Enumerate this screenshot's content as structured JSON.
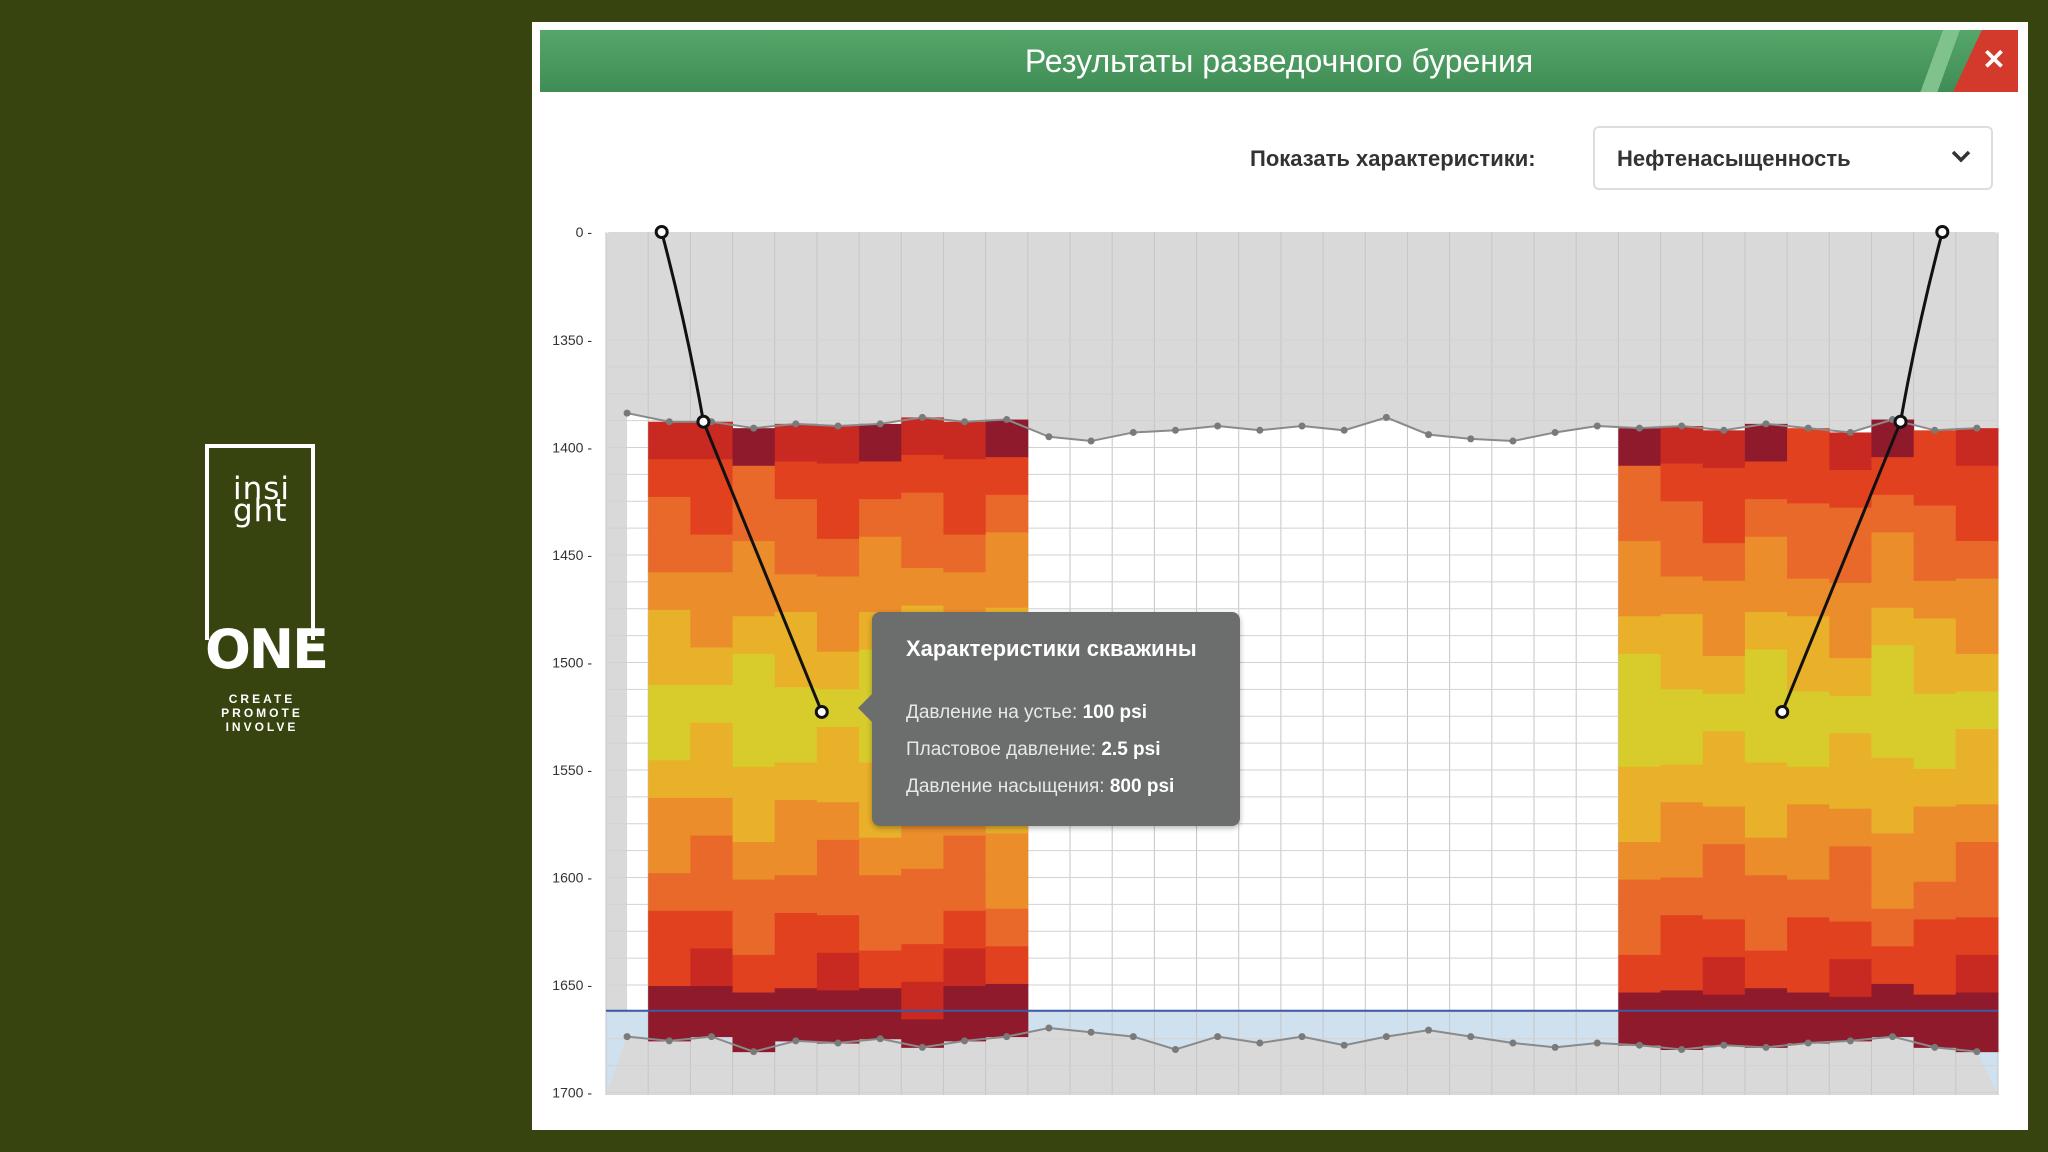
{
  "logo": {
    "word": "insi ght",
    "word_line1": "insi",
    "word_line2": "ght",
    "brand": "ONE",
    "tagline": [
      "CREATE",
      "PROMOTE",
      "INVOLVE"
    ]
  },
  "window": {
    "title": "Результаты разведочного бурения",
    "close_icon": "close-icon"
  },
  "filter": {
    "label": "Показать характеристики:",
    "selected": "Нефтенасыщенность"
  },
  "tooltip": {
    "title": "Характеристики скважины",
    "rows": [
      {
        "label": "Давление на устье: ",
        "value": "100 psi"
      },
      {
        "label": "Пластовое давление: ",
        "value": "2.5 psi"
      },
      {
        "label": "Давление насыщения: ",
        "value": "800 psi"
      }
    ]
  },
  "colors": {
    "background": "#37440f",
    "titlebar": "#4a9a5f",
    "close": "#d43a2c",
    "heat": [
      "#8e1a2b",
      "#c82a22",
      "#e2411f",
      "#e8692a",
      "#eb8d2a",
      "#e9b02a",
      "#d7cc2c"
    ]
  },
  "chart_data": {
    "type": "heatmap",
    "y_ticks": [
      "0",
      "1350",
      "1400",
      "1450",
      "1500",
      "1550",
      "1600",
      "1650",
      "1700"
    ],
    "y_values": [
      0,
      1350,
      1400,
      1450,
      1500,
      1550,
      1600,
      1650,
      1700
    ],
    "xlabel": "",
    "ylabel": "",
    "top_surface": [
      1384,
      1388,
      1388,
      1391,
      1389,
      1390,
      1389,
      1386,
      1388,
      1387,
      1395,
      1397,
      1393,
      1392,
      1390,
      1392,
      1390,
      1392,
      1386,
      1394,
      1396,
      1397,
      1393,
      1390,
      1391,
      1390,
      1392,
      1389,
      1391,
      1393,
      1387,
      1392,
      1391
    ],
    "bottom_surface": [
      1674,
      1676,
      1674,
      1681,
      1676,
      1677,
      1675,
      1679,
      1676,
      1674,
      1670,
      1672,
      1674,
      1680,
      1674,
      1677,
      1674,
      1678,
      1674,
      1671,
      1674,
      1677,
      1679,
      1677,
      1678,
      1680,
      1678,
      1679,
      1677,
      1676,
      1674,
      1679,
      1681
    ],
    "water_contact": 1662,
    "wells": [
      {
        "name": "well-left",
        "top_x": 0.04,
        "mid_x": 0.07,
        "bottom_x": 0.155,
        "top_depth": 0,
        "mid_depth": 1388,
        "bottom_depth": 1523
      },
      {
        "name": "well-right",
        "top_x": 0.96,
        "mid_x": 0.93,
        "bottom_x": 0.845,
        "top_depth": 0,
        "mid_depth": 1388,
        "bottom_depth": 1523
      }
    ],
    "saturated_zones": [
      {
        "from_col": 1,
        "to_col": 9
      },
      {
        "from_col": 24,
        "to_col": 32
      }
    ]
  }
}
